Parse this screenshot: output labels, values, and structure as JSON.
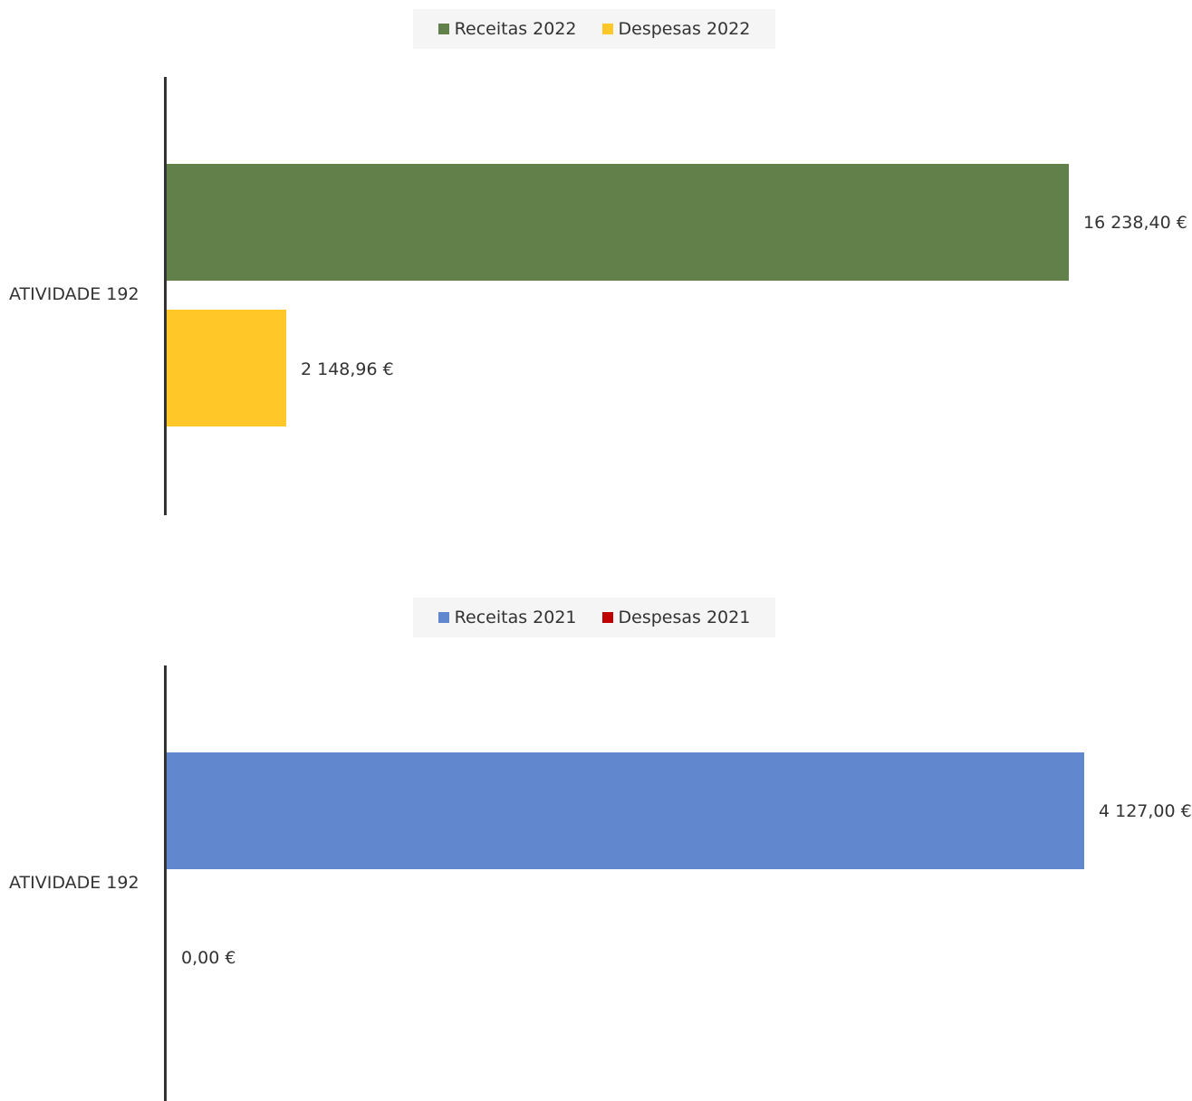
{
  "chart_data": [
    {
      "type": "bar",
      "orientation": "horizontal",
      "categories": [
        "ATIVIDADE 192"
      ],
      "series": [
        {
          "name": "Receitas 2022",
          "values": [
            16238.4
          ],
          "label": "16 238,40 €",
          "color": "#61804a"
        },
        {
          "name": "Despesas 2022",
          "values": [
            2148.96
          ],
          "label": "2 148,96 €",
          "color": "#ffc727"
        }
      ],
      "legend": "top-center",
      "grid": false,
      "xlim": [
        0,
        16238.4
      ]
    },
    {
      "type": "bar",
      "orientation": "horizontal",
      "categories": [
        "ATIVIDADE 192"
      ],
      "series": [
        {
          "name": "Receitas 2021",
          "values": [
            4127.0
          ],
          "label": "4 127,00 €",
          "color": "#6188ce"
        },
        {
          "name": "Despesas 2021",
          "values": [
            0.0
          ],
          "label": "0,00 €",
          "color": "#c00000"
        }
      ],
      "legend": "top-center",
      "grid": false,
      "xlim": [
        0,
        4127.0
      ]
    }
  ]
}
